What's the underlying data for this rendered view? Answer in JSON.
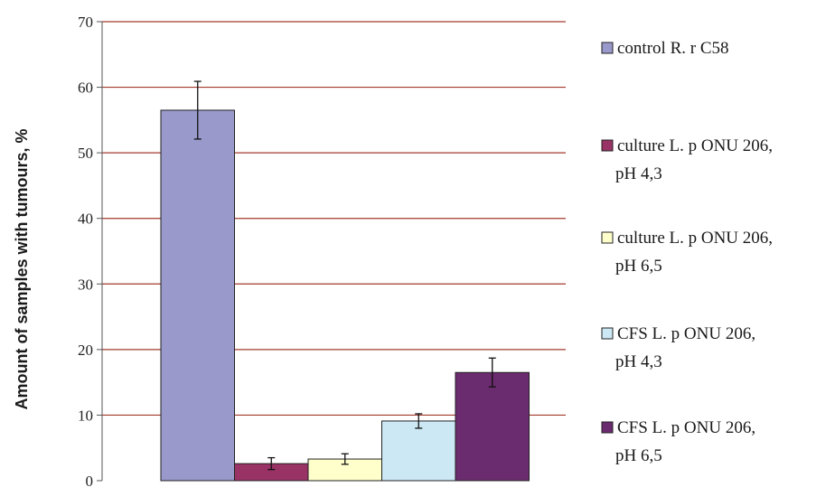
{
  "chart_data": {
    "type": "bar",
    "title": "",
    "xlabel": "",
    "ylabel": "Amount of samples with tumours, %",
    "ylim": [
      0,
      70
    ],
    "yticks": [
      0,
      10,
      20,
      30,
      40,
      50,
      60,
      70
    ],
    "grid": true,
    "legend_position": "right",
    "series": [
      {
        "name": "control R. r C58",
        "label_lines": [
          "control R. r C58"
        ],
        "value": 56.5,
        "error": 4.4,
        "color": "#9999cc"
      },
      {
        "name": "culture L. p ONU 206, pH 4,3",
        "label_lines": [
          "culture L. p ONU 206,",
          "pH 4,3"
        ],
        "value": 2.6,
        "error": 0.9,
        "color": "#993366"
      },
      {
        "name": "culture L. p ONU 206, pH 6,5",
        "label_lines": [
          "culture L. p ONU 206,",
          "pH 6,5"
        ],
        "value": 3.3,
        "error": 0.8,
        "color": "#ffffcc"
      },
      {
        "name": "CFS L. p ONU 206, pH 4,3",
        "label_lines": [
          "CFS L. p ONU 206,",
          "pH 4,3"
        ],
        "value": 9.1,
        "error": 1.1,
        "color": "#cce8f4"
      },
      {
        "name": "CFS L. p ONU 206, pH 6,5",
        "label_lines": [
          "CFS L. p ONU 206,",
          "pH 6,5"
        ],
        "value": 16.5,
        "error": 2.2,
        "color": "#6a2c6e"
      }
    ]
  }
}
